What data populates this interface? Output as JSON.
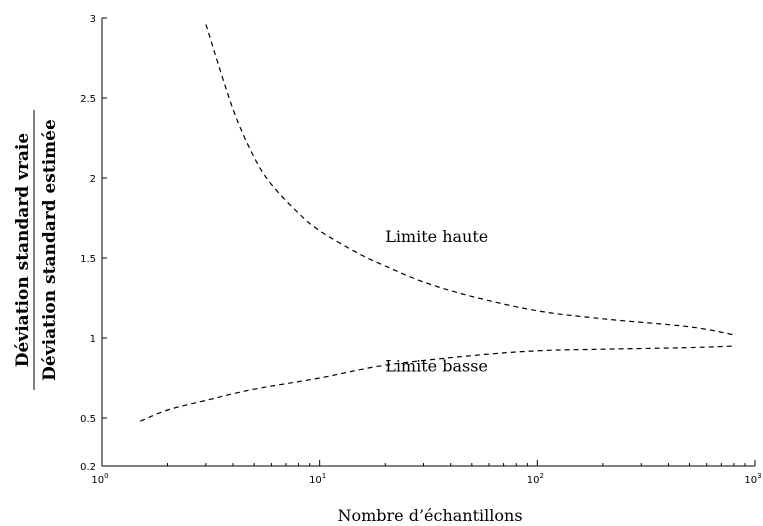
{
  "chart_data": {
    "type": "line",
    "title": "",
    "xlabel": "Nombre d’échantillons",
    "ylabel_numerator": "Déviation standard vraie",
    "ylabel_denominator": "Déviation standard estimée",
    "x_scale": "log",
    "xlim": [
      1,
      1000
    ],
    "ylim": [
      0.2,
      3
    ],
    "grid": false,
    "x_ticks": [
      {
        "value": 1,
        "base": "10",
        "exp": "0"
      },
      {
        "value": 10,
        "base": "10",
        "exp": "1"
      },
      {
        "value": 100,
        "base": "10",
        "exp": "2"
      },
      {
        "value": 1000,
        "base": "10",
        "exp": "3"
      }
    ],
    "y_ticks": [
      {
        "value": 0.2,
        "label": "0.2"
      },
      {
        "value": 0.5,
        "label": "0.5"
      },
      {
        "value": 1,
        "label": "1"
      },
      {
        "value": 1.5,
        "label": "1.5"
      },
      {
        "value": 2,
        "label": "2"
      },
      {
        "value": 2.5,
        "label": "2.5"
      },
      {
        "value": 3,
        "label": "3"
      }
    ],
    "series": [
      {
        "label": "Limite haute",
        "style": "dashed",
        "color": "#000000",
        "x": [
          3,
          4,
          5,
          6,
          8,
          10,
          15,
          20,
          30,
          50,
          100,
          200,
          500,
          800
        ],
        "y": [
          2.96,
          2.43,
          2.13,
          1.96,
          1.78,
          1.67,
          1.53,
          1.45,
          1.35,
          1.26,
          1.17,
          1.12,
          1.07,
          1.02
        ]
      },
      {
        "label": "Limite basse",
        "style": "dashed",
        "color": "#000000",
        "x": [
          1.5,
          2,
          3,
          5,
          10,
          20,
          50,
          100,
          200,
          500,
          800
        ],
        "y": [
          0.48,
          0.55,
          0.61,
          0.68,
          0.75,
          0.83,
          0.89,
          0.92,
          0.93,
          0.94,
          0.95
        ]
      }
    ],
    "annotations": [
      {
        "text": "Limite haute",
        "x": 20,
        "y": 1.6
      },
      {
        "text": "Limite basse",
        "x": 20,
        "y": 0.79
      }
    ]
  }
}
